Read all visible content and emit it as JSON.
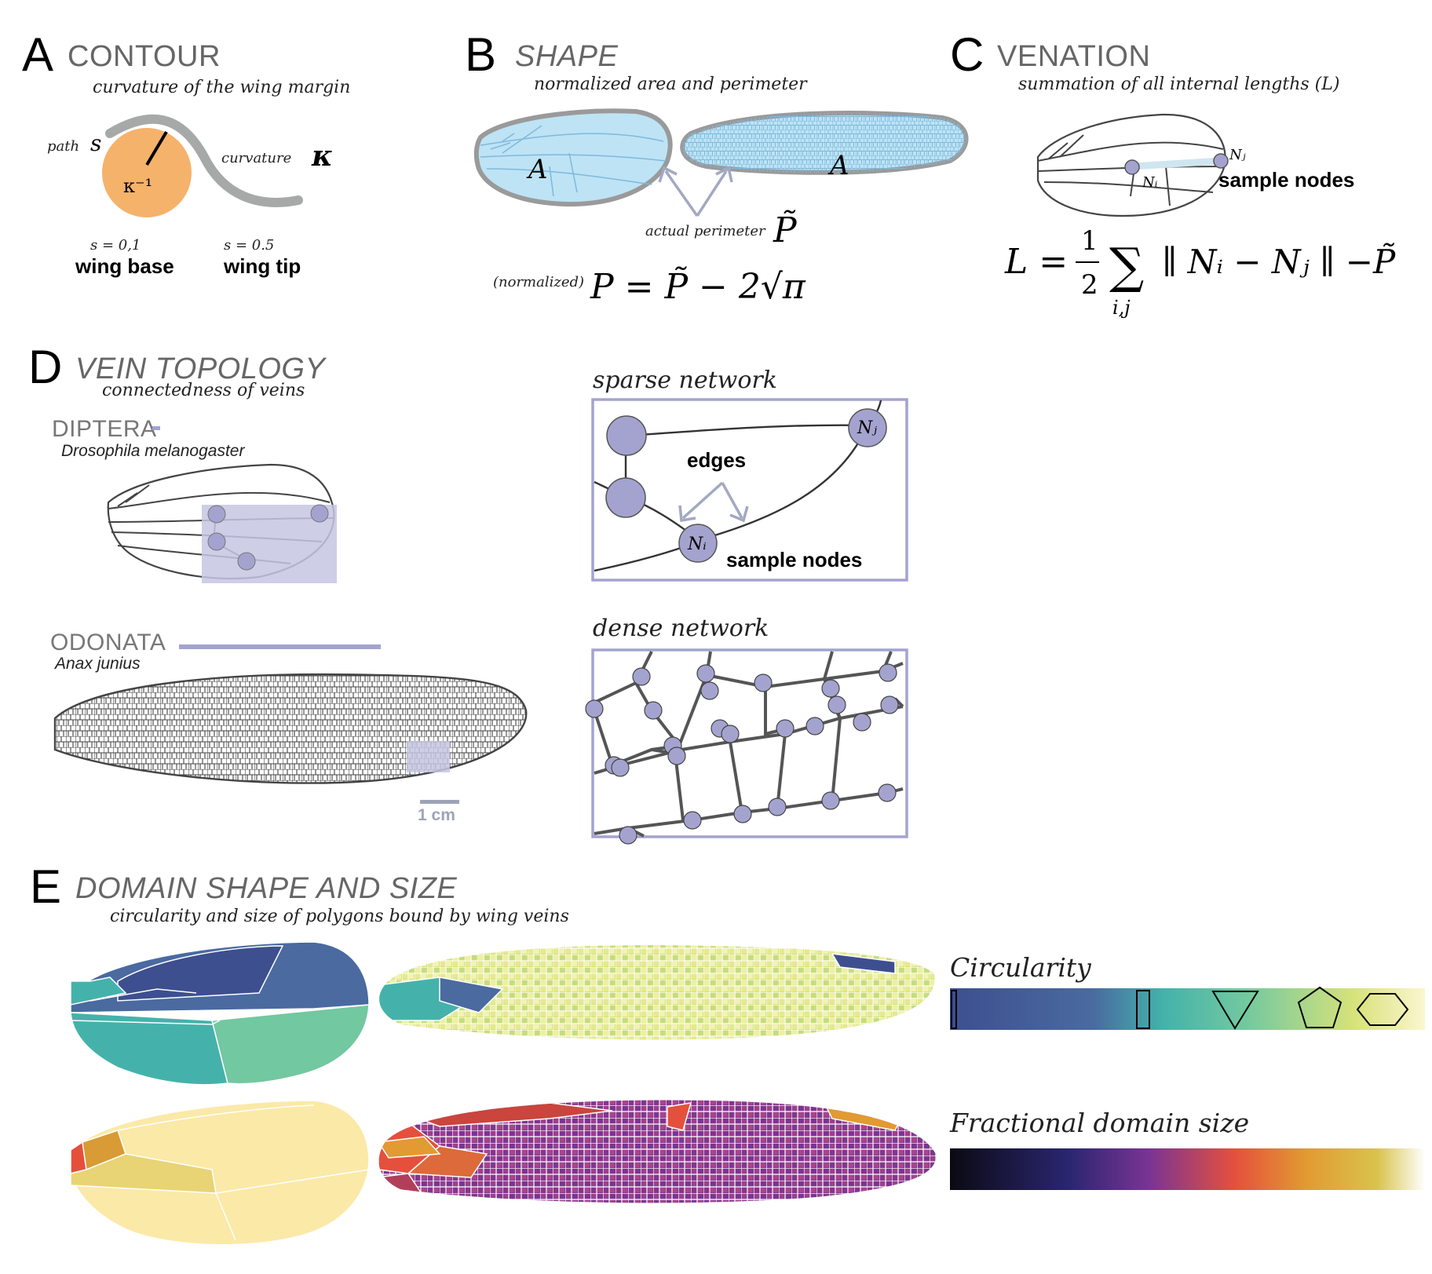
{
  "panel_a": {
    "letter": "A",
    "title": "CONTOUR",
    "subtitle": "curvature of the wing margin",
    "path_label": "path",
    "path_symbol": "s",
    "curvature_label": "curvature",
    "curvature_symbol": "κ",
    "radius_label": "κ⁻¹",
    "base_s": "s = 0,1",
    "base_label": "wing base",
    "tip_s": "s = 0.5",
    "tip_label": "wing tip",
    "colors": {
      "circle": "#f5b26b",
      "curve": "#a7a9a9"
    }
  },
  "panel_b": {
    "letter": "B",
    "title": "SHAPE",
    "subtitle": "normalized area and perimeter",
    "area_symbol": "A",
    "perimeter_label": "actual perimeter",
    "perimeter_symbol": "P̃",
    "normalized_tag": "(normalized)",
    "formula": "P = P̃ − 2√π",
    "colors": {
      "wing_fill": "#bde3f5",
      "wing_edge": "#9a9a9a",
      "vein": "#7fb9dc",
      "arrow": "#a3a8c2"
    }
  },
  "panel_c": {
    "letter": "C",
    "title": "VENATION",
    "subtitle": "summation of all internal lengths (L)",
    "node_i": "Nᵢ",
    "node_j": "Nⱼ",
    "nodes_label": "sample nodes",
    "formula_lhs": "L =",
    "formula_half_num": "1",
    "formula_half_den": "2",
    "formula_sum": "∑",
    "formula_sub": "i,j",
    "formula_body": "∥ Nᵢ − Nⱼ ∥ −P̃",
    "colors": {
      "node": "#a4a3cf"
    }
  },
  "panel_d": {
    "letter": "D",
    "title": "VEIN TOPOLOGY",
    "subtitle": "connectedness of veins",
    "diptera_order": "DIPTERA",
    "diptera_species": "Drosophila melanogaster",
    "odonata_order": "ODONATA",
    "odonata_species": "Anax junius",
    "scale_label": "1 cm",
    "sparse_label": "sparse network",
    "edges_label": "edges",
    "node_i": "Nᵢ",
    "node_j": "Nⱼ",
    "nodes_label": "sample nodes",
    "dense_label": "dense network",
    "colors": {
      "node": "#a4a3cf",
      "box": "#a4a3cf",
      "highlight": "#c6c5e3"
    }
  },
  "panel_e": {
    "letter": "E",
    "title": "DOMAIN SHAPE AND SIZE",
    "subtitle": "circularity and size of polygons bound by wing veins",
    "circularity_label": "Circularity",
    "size_label": "Fractional domain size",
    "colors": {
      "viridis": [
        "#3d4f8f",
        "#4a6aa0",
        "#44b2ab",
        "#72c8a0",
        "#d7e27a",
        "#fbf6cf"
      ],
      "magma": [
        "#0b0a12",
        "#2a2670",
        "#7a3493",
        "#e5503d",
        "#e29a32",
        "#d9c34d",
        "#ffffff"
      ]
    }
  }
}
